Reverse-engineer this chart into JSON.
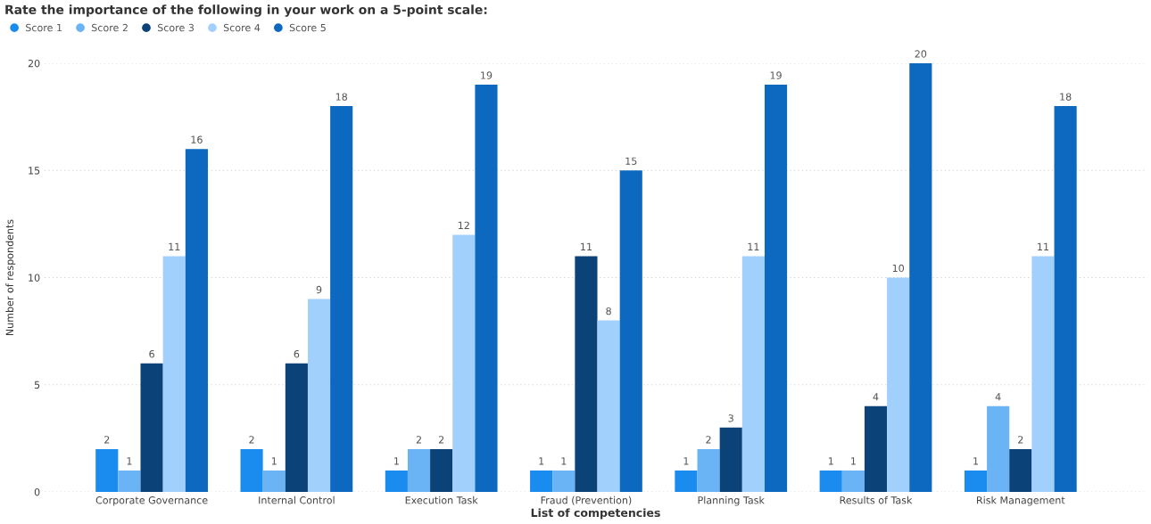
{
  "chart_data": {
    "type": "bar",
    "title": "Rate the importance of the following in your work on a 5-point scale:",
    "xlabel": "List of competencies",
    "ylabel": "Number of respondents",
    "categories": [
      "Corporate Governance",
      "Internal Control",
      "Execution Task",
      "Fraud (Prevention)",
      "Planning Task",
      "Results of Task",
      "Risk Management"
    ],
    "series": [
      {
        "name": "Score 1",
        "color": "#1a8cf0",
        "values": [
          2,
          2,
          1,
          1,
          1,
          1,
          1
        ]
      },
      {
        "name": "Score 2",
        "color": "#6ab4f5",
        "values": [
          1,
          1,
          2,
          1,
          2,
          1,
          4
        ]
      },
      {
        "name": "Score 3",
        "color": "#0b4278",
        "values": [
          6,
          6,
          2,
          11,
          3,
          4,
          2
        ]
      },
      {
        "name": "Score 4",
        "color": "#a2d0fc",
        "values": [
          11,
          9,
          12,
          8,
          11,
          10,
          11
        ]
      },
      {
        "name": "Score 5",
        "color": "#0d68c0",
        "values": [
          16,
          18,
          19,
          15,
          19,
          20,
          18
        ]
      }
    ],
    "ylim": [
      0,
      20
    ],
    "yticks": [
      0,
      5,
      10,
      15,
      20
    ],
    "grid": "y",
    "legend": "top left",
    "data_labels": true
  }
}
